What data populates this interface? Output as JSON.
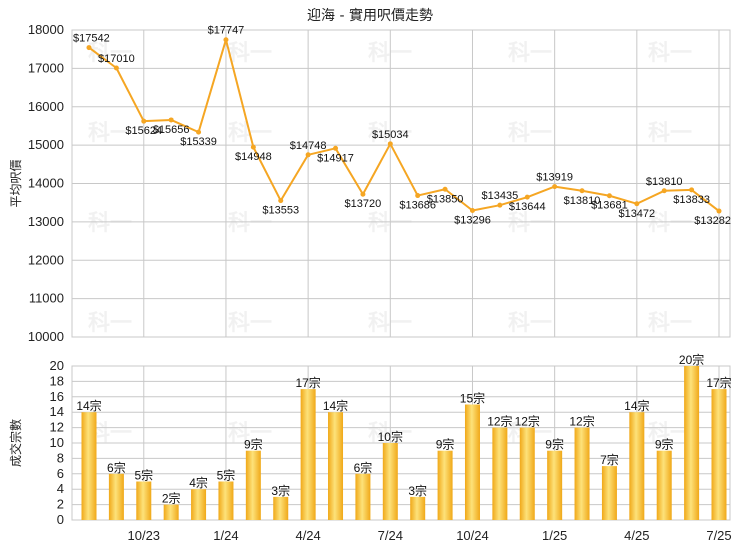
{
  "title": "迎海 - 實用呎價走勢",
  "watermark": "科一",
  "colors": {
    "line": "#f5a623",
    "bar_light": "#fde27a",
    "bar_dark": "#f0a818",
    "grid": "#c8c8c8"
  },
  "chart_data": [
    {
      "type": "line",
      "ylabel": "平均呎價",
      "ylim": [
        10000,
        18000
      ],
      "yticks": [
        10000,
        11000,
        12000,
        13000,
        14000,
        15000,
        16000,
        17000,
        18000
      ],
      "points": [
        {
          "label": "$17542",
          "value": 17542
        },
        {
          "label": "$17010",
          "value": 17010
        },
        {
          "label": "$15624",
          "value": 15624
        },
        {
          "label": "$15656",
          "value": 15656
        },
        {
          "label": "$15339",
          "value": 15339
        },
        {
          "label": "$17747",
          "value": 17747
        },
        {
          "label": "$14948",
          "value": 14948
        },
        {
          "label": "$13553",
          "value": 13553
        },
        {
          "label": "$14748",
          "value": 14748
        },
        {
          "label": "$14917",
          "value": 14917
        },
        {
          "label": "$13720",
          "value": 13720
        },
        {
          "label": "$15034",
          "value": 15034
        },
        {
          "label": "$13686",
          "value": 13686
        },
        {
          "label": "$13850",
          "value": 13850
        },
        {
          "label": "$13296",
          "value": 13296
        },
        {
          "label": "$13435",
          "value": 13435
        },
        {
          "label": "$13644",
          "value": 13644
        },
        {
          "label": "$13919",
          "value": 13919
        },
        {
          "label": "$13810",
          "value": 13810
        },
        {
          "label": "$13681",
          "value": 13681
        },
        {
          "label": "$13472",
          "value": 13472
        },
        {
          "label": "$13810",
          "value": 13810
        },
        {
          "label": "$13833",
          "value": 13833
        },
        {
          "label": "$13282",
          "value": 13282
        }
      ]
    },
    {
      "type": "bar",
      "ylabel": "成交宗數",
      "ylim": [
        0,
        20
      ],
      "yticks": [
        0,
        2,
        4,
        6,
        8,
        10,
        12,
        14,
        16,
        18,
        20
      ],
      "x_tick_labels": [
        "10/23",
        "1/24",
        "4/24",
        "7/24",
        "10/24",
        "1/25",
        "4/25",
        "7/25"
      ],
      "bars": [
        {
          "value": 14,
          "label": "14宗"
        },
        {
          "value": 6,
          "label": "6宗"
        },
        {
          "value": 5,
          "label": "5宗"
        },
        {
          "value": 2,
          "label": "2宗"
        },
        {
          "value": 4,
          "label": "4宗"
        },
        {
          "value": 5,
          "label": "5宗"
        },
        {
          "value": 9,
          "label": "9宗"
        },
        {
          "value": 3,
          "label": "3宗"
        },
        {
          "value": 17,
          "label": "17宗"
        },
        {
          "value": 14,
          "label": "14宗"
        },
        {
          "value": 6,
          "label": "6宗"
        },
        {
          "value": 10,
          "label": "10宗"
        },
        {
          "value": 3,
          "label": "3宗"
        },
        {
          "value": 9,
          "label": "9宗"
        },
        {
          "value": 15,
          "label": "15宗"
        },
        {
          "value": 12,
          "label": "12宗"
        },
        {
          "value": 12,
          "label": "12宗"
        },
        {
          "value": 9,
          "label": "9宗"
        },
        {
          "value": 12,
          "label": "12宗"
        },
        {
          "value": 7,
          "label": "7宗"
        },
        {
          "value": 14,
          "label": "14宗"
        },
        {
          "value": 9,
          "label": "9宗"
        },
        {
          "value": 20,
          "label": "20宗"
        },
        {
          "value": 17,
          "label": "17宗"
        }
      ]
    }
  ]
}
